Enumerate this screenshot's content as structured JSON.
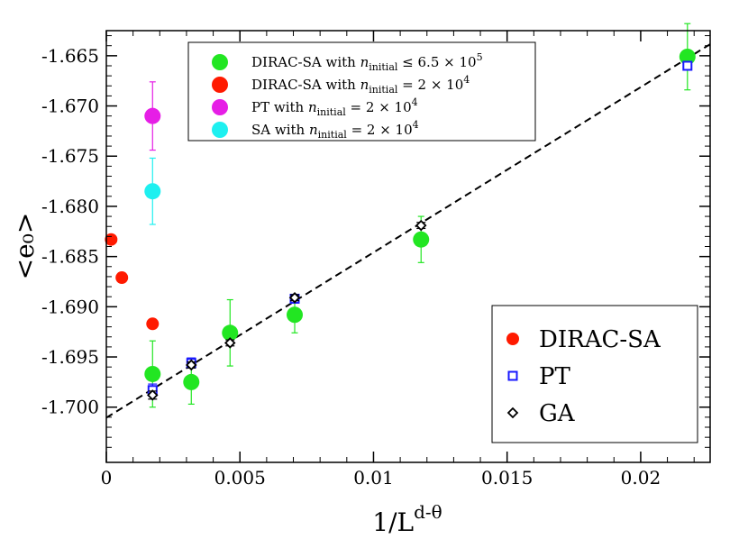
{
  "chart_data": {
    "type": "scatter",
    "title": "",
    "xlabel": "1/L",
    "xlabel_superscript": "d-θ",
    "ylabel": "<e₀>",
    "xlim": [
      0,
      0.0226
    ],
    "ylim": [
      -1.7055,
      -1.6625
    ],
    "x_ticks": [
      0,
      0.005,
      0.01,
      0.015,
      0.02
    ],
    "x_tick_labels": [
      "0",
      "0.005",
      "0.01",
      "0.015",
      "0.02"
    ],
    "y_ticks": [
      -1.665,
      -1.67,
      -1.675,
      -1.68,
      -1.685,
      -1.69,
      -1.695,
      -1.7
    ],
    "y_tick_labels": [
      "-1.665",
      "-1.670",
      "-1.675",
      "-1.680",
      "-1.685",
      "-1.690",
      "-1.695",
      "-1.700"
    ],
    "fit_line": {
      "style": "dashed",
      "x": [
        0,
        0.0226
      ],
      "y": [
        -1.70105,
        -1.66385
      ]
    },
    "series": [
      {
        "name": "DIRAC-SA with n_initial ≤ 6.5 × 10^5",
        "marker": "circle-large",
        "color": "#22e622",
        "error_color": "#22e622",
        "points": [
          {
            "x": 0.00173,
            "y": -1.6967,
            "err": 0.0033
          },
          {
            "x": 0.00318,
            "y": -1.6975,
            "err": 0.0022
          },
          {
            "x": 0.00463,
            "y": -1.6926,
            "err": 0.0033
          },
          {
            "x": 0.00705,
            "y": -1.6908,
            "err": 0.0018
          },
          {
            "x": 0.01178,
            "y": -1.6833,
            "err": 0.0023
          },
          {
            "x": 0.02175,
            "y": -1.6651,
            "err": 0.0033
          }
        ]
      },
      {
        "name": "DIRAC-SA with n_initial = 2 × 10^4",
        "marker": "circle-large",
        "color": "#ff1a00",
        "points": []
      },
      {
        "name": "PT with n_initial = 2 × 10^4",
        "marker": "circle-large",
        "color": "#e61ee6",
        "error_color": "#e61ee6",
        "points": [
          {
            "x": 0.00173,
            "y": -1.671,
            "err": 0.0034
          }
        ]
      },
      {
        "name": "SA with n_initial = 2 × 10^4",
        "marker": "circle-large",
        "color": "#1ef0f0",
        "error_color": "#1ef0f0",
        "points": [
          {
            "x": 0.00173,
            "y": -1.6785,
            "err": 0.0033
          }
        ]
      },
      {
        "name": "DIRAC-SA",
        "marker": "circle-small",
        "color": "#ff1a00",
        "points": [
          {
            "x": 0.00018,
            "y": -1.6833
          },
          {
            "x": 0.00058,
            "y": -1.6871
          },
          {
            "x": 0.00173,
            "y": -1.6917
          }
        ]
      },
      {
        "name": "PT",
        "marker": "square",
        "color": "#1a1aff",
        "error_color": "#1a1aff",
        "points": [
          {
            "x": 0.00173,
            "y": -1.6983,
            "err": 0.0006
          },
          {
            "x": 0.00318,
            "y": -1.6956,
            "err": 0.0005
          },
          {
            "x": 0.00705,
            "y": -1.6892,
            "err": 0.0004
          },
          {
            "x": 0.02175,
            "y": -1.666,
            "err": 0.0004
          }
        ]
      },
      {
        "name": "GA",
        "marker": "diamond",
        "color": "#000000",
        "error_color": "#000000",
        "points": [
          {
            "x": 0.00173,
            "y": -1.6988,
            "err": 0.0004
          },
          {
            "x": 0.00318,
            "y": -1.6958,
            "err": 0.0003
          },
          {
            "x": 0.00463,
            "y": -1.6936,
            "err": 0.0003
          },
          {
            "x": 0.00705,
            "y": -1.6891,
            "err": 0.0003
          },
          {
            "x": 0.01178,
            "y": -1.6819,
            "err": 0.0003
          }
        ]
      }
    ],
    "legends": [
      {
        "location": "top-center",
        "entries": [
          {
            "series": 0,
            "text": "DIRAC-SA with ",
            "var": "n",
            "sub": "initial",
            "rel": " ≤ 6.5 × 10",
            "exp": "5"
          },
          {
            "series": 1,
            "text": "DIRAC-SA with ",
            "var": "n",
            "sub": "initial",
            "rel": " = 2 × 10",
            "exp": "4"
          },
          {
            "series": 2,
            "text": "PT with ",
            "var": "n",
            "sub": "initial",
            "rel": " = 2 × 10",
            "exp": "4"
          },
          {
            "series": 3,
            "text": "SA with ",
            "var": "n",
            "sub": "initial",
            "rel": " = 2 × 10",
            "exp": "4"
          }
        ]
      },
      {
        "location": "bottom-right",
        "entries": [
          {
            "series": 4,
            "text": "DIRAC-SA"
          },
          {
            "series": 5,
            "text": "PT"
          },
          {
            "series": 6,
            "text": "GA"
          }
        ]
      }
    ]
  }
}
